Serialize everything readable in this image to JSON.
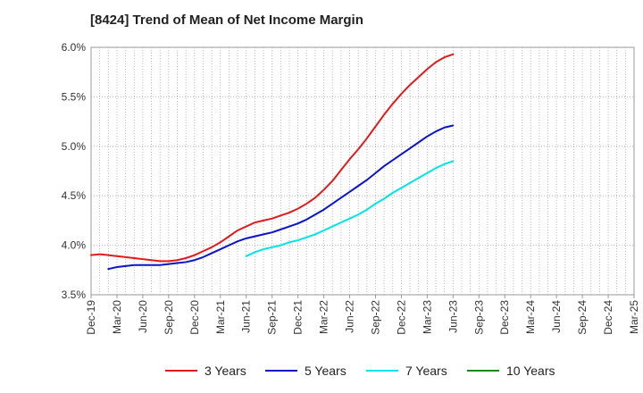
{
  "chart_data": {
    "type": "line",
    "title": "[8424]  Trend of Mean of Net Income Margin",
    "xlabel": "",
    "ylabel": "",
    "x_ticks": [
      "Dec-19",
      "Mar-20",
      "Jun-20",
      "Sep-20",
      "Dec-20",
      "Mar-21",
      "Jun-21",
      "Sep-21",
      "Dec-21",
      "Mar-22",
      "Jun-22",
      "Sep-22",
      "Dec-22",
      "Mar-23",
      "Jun-23",
      "Sep-23",
      "Dec-23",
      "Mar-24",
      "Jun-24",
      "Sep-24",
      "Dec-24",
      "Mar-25"
    ],
    "y_ticks": [
      "3.5%",
      "4.0%",
      "4.5%",
      "5.0%",
      "5.5%",
      "6.0%"
    ],
    "ylim": [
      3.5,
      6.0
    ],
    "grid": "dotted",
    "legend_position": "bottom",
    "series": [
      {
        "name": "3 Years",
        "color": "#e31a1c",
        "values": [
          3.9,
          3.91,
          3.9,
          3.89,
          3.88,
          3.87,
          3.86,
          3.85,
          3.84,
          3.84,
          3.85,
          3.87,
          3.9,
          3.94,
          3.98,
          4.03,
          4.09,
          4.15,
          4.19,
          4.23,
          4.25,
          4.27,
          4.3,
          4.33,
          4.37,
          4.42,
          4.48,
          4.56,
          4.65,
          4.76,
          4.87,
          4.97,
          5.08,
          5.2,
          5.32,
          5.43,
          5.53,
          5.62,
          5.7,
          5.78,
          5.85,
          5.9,
          5.93
        ]
      },
      {
        "name": "5 Years",
        "color": "#0a14c8",
        "values": [
          null,
          null,
          3.76,
          3.78,
          3.79,
          3.8,
          3.8,
          3.8,
          3.8,
          3.81,
          3.82,
          3.83,
          3.85,
          3.88,
          3.92,
          3.96,
          4.0,
          4.04,
          4.07,
          4.09,
          4.11,
          4.13,
          4.16,
          4.19,
          4.22,
          4.26,
          4.31,
          4.36,
          4.42,
          4.48,
          4.54,
          4.6,
          4.66,
          4.73,
          4.8,
          4.86,
          4.92,
          4.98,
          5.04,
          5.1,
          5.15,
          5.19,
          5.21
        ]
      },
      {
        "name": "7 Years",
        "color": "#00e5e5",
        "values": [
          null,
          null,
          null,
          null,
          null,
          null,
          null,
          null,
          null,
          null,
          null,
          null,
          null,
          null,
          null,
          null,
          null,
          null,
          3.89,
          3.93,
          3.96,
          3.98,
          4.0,
          4.03,
          4.05,
          4.08,
          4.11,
          4.15,
          4.19,
          4.23,
          4.27,
          4.31,
          4.36,
          4.42,
          4.47,
          4.53,
          4.58,
          4.63,
          4.68,
          4.73,
          4.78,
          4.82,
          4.85
        ]
      },
      {
        "name": "10 Years",
        "color": "#1a8a1a",
        "values": []
      }
    ]
  }
}
